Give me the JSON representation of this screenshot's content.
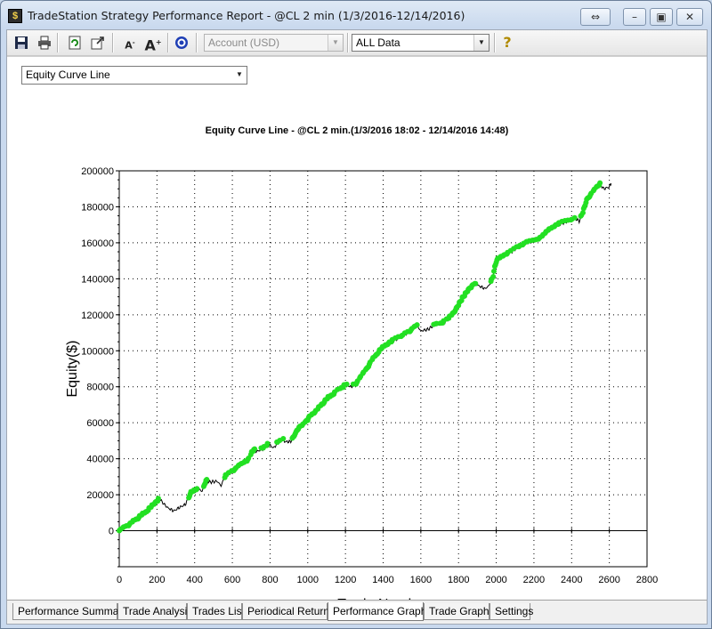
{
  "window": {
    "title": "TradeStation Strategy Performance Report - @CL 2 min (1/3/2016-12/14/2016)",
    "icon": "tradestation-app-icon",
    "buttons": [
      "restore-icon",
      "minimize-icon",
      "maximize-icon",
      "close-icon"
    ]
  },
  "toolbar": {
    "account_select": "Account (USD)",
    "data_select": "ALL Data",
    "icons": [
      "save-icon",
      "print-icon",
      "refresh-icon",
      "export-icon",
      "font-decrease-icon",
      "font-increase-icon",
      "target-icon",
      "help-icon"
    ]
  },
  "graph_select": {
    "value": "Equity Curve Line"
  },
  "chart_title": "Equity Curve Line - @CL 2 min.(1/3/2016 18:02 - 12/14/2016 14:48)",
  "tabs": [
    {
      "label": "Performance Summary",
      "active": false
    },
    {
      "label": "Trade Analysis",
      "active": false
    },
    {
      "label": "Trades List",
      "active": false
    },
    {
      "label": "Periodical Returns",
      "active": false
    },
    {
      "label": "Performance Graphs",
      "active": true
    },
    {
      "label": "Trade Graphs",
      "active": false
    },
    {
      "label": "Settings",
      "active": false
    }
  ],
  "colors": {
    "new_high": "#22e022",
    "curve": "#000000",
    "grid": "#000000"
  },
  "chart_data": {
    "type": "line",
    "title": "Equity Curve Line - @CL 2 min.(1/3/2016 18:02 - 12/14/2016 14:48)",
    "xlabel": "Trade Number",
    "ylabel": "Equity($)",
    "xlim": [
      0,
      2800
    ],
    "ylim": [
      -20000,
      200000
    ],
    "xticks": [
      0,
      200,
      400,
      600,
      800,
      1000,
      1200,
      1400,
      1600,
      1800,
      2000,
      2200,
      2400,
      2600,
      2800
    ],
    "yticks": [
      0,
      20000,
      40000,
      60000,
      80000,
      100000,
      120000,
      140000,
      160000,
      180000,
      200000
    ],
    "grid": "dotted",
    "series": [
      {
        "highlight": "green markers at new equity highs",
        "points": [
          [
            0,
            0
          ],
          [
            50,
            3000
          ],
          [
            100,
            7000
          ],
          [
            150,
            11000
          ],
          [
            200,
            16500
          ],
          [
            215,
            17500
          ],
          [
            240,
            14500
          ],
          [
            260,
            12500
          ],
          [
            290,
            11000
          ],
          [
            320,
            13000
          ],
          [
            350,
            14500
          ],
          [
            380,
            21000
          ],
          [
            420,
            23000
          ],
          [
            440,
            22000
          ],
          [
            460,
            28000
          ],
          [
            480,
            27000
          ],
          [
            520,
            27500
          ],
          [
            540,
            25000
          ],
          [
            560,
            30000
          ],
          [
            600,
            33000
          ],
          [
            650,
            37000
          ],
          [
            690,
            40000
          ],
          [
            710,
            45000
          ],
          [
            730,
            44000
          ],
          [
            760,
            45500
          ],
          [
            790,
            48000
          ],
          [
            820,
            46000
          ],
          [
            840,
            49000
          ],
          [
            870,
            50500
          ],
          [
            880,
            49500
          ],
          [
            910,
            49500
          ],
          [
            950,
            57000
          ],
          [
            970,
            58000
          ],
          [
            1000,
            62000
          ],
          [
            1050,
            67000
          ],
          [
            1100,
            73000
          ],
          [
            1150,
            77000
          ],
          [
            1200,
            81000
          ],
          [
            1230,
            80000
          ],
          [
            1260,
            82000
          ],
          [
            1300,
            88000
          ],
          [
            1350,
            96000
          ],
          [
            1400,
            102000
          ],
          [
            1440,
            105000
          ],
          [
            1480,
            107000
          ],
          [
            1530,
            110000
          ],
          [
            1580,
            114000
          ],
          [
            1600,
            111000
          ],
          [
            1640,
            112000
          ],
          [
            1680,
            115000
          ],
          [
            1700,
            114500
          ],
          [
            1740,
            117000
          ],
          [
            1780,
            122000
          ],
          [
            1820,
            129000
          ],
          [
            1860,
            135000
          ],
          [
            1890,
            137000
          ],
          [
            1910,
            136000
          ],
          [
            1940,
            134500
          ],
          [
            1960,
            136000
          ],
          [
            1980,
            140000
          ],
          [
            2000,
            150000
          ],
          [
            2040,
            153000
          ],
          [
            2080,
            155000
          ],
          [
            2120,
            158000
          ],
          [
            2160,
            160000
          ],
          [
            2200,
            161000
          ],
          [
            2240,
            163000
          ],
          [
            2280,
            167000
          ],
          [
            2320,
            170000
          ],
          [
            2380,
            172000
          ],
          [
            2420,
            173500
          ],
          [
            2440,
            172000
          ],
          [
            2460,
            177000
          ],
          [
            2480,
            184000
          ],
          [
            2520,
            189000
          ],
          [
            2550,
            193000
          ],
          [
            2570,
            190000
          ],
          [
            2600,
            191000
          ],
          [
            2610,
            193000
          ]
        ]
      }
    ]
  }
}
